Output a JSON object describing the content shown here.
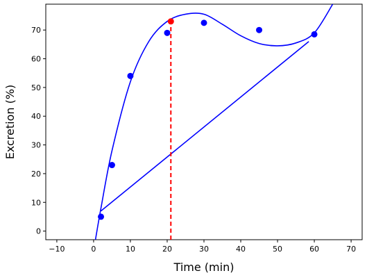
{
  "chart_data": {
    "type": "scatter",
    "xlabel": "Time (min)",
    "ylabel": "Excretion (%)",
    "xlim": [
      -13,
      73
    ],
    "ylim": [
      -3,
      79
    ],
    "xticks": [
      -10,
      0,
      10,
      20,
      30,
      40,
      50,
      60,
      70
    ],
    "yticks": [
      0,
      10,
      20,
      30,
      40,
      50,
      60,
      70
    ],
    "grid": false,
    "points": {
      "x": [
        2,
        5,
        10,
        20,
        30,
        45,
        60
      ],
      "y": [
        5,
        23,
        54,
        69,
        72.5,
        70,
        68.5
      ],
      "color": "#0000ff"
    },
    "highlight_point": {
      "x": 21,
      "y": 73,
      "color": "#ff0000"
    },
    "fitted_curve": {
      "color": "#0000ff",
      "x": [
        0.5,
        2,
        5,
        10,
        15,
        20,
        25,
        30,
        35,
        40,
        45,
        50,
        55,
        60,
        65
      ],
      "y": [
        -3,
        8,
        28,
        52,
        66,
        73,
        75.5,
        75.5,
        72,
        68,
        65.3,
        64.5,
        65.5,
        69,
        79
      ]
    },
    "tangent_line": {
      "x": [
        2,
        58.5
      ],
      "y": [
        7,
        66
      ],
      "color": "#0000ff"
    },
    "vertical_marker": {
      "x": 21,
      "y_from": -3,
      "y_to": 73,
      "color": "#ff0000",
      "style": "dashed"
    }
  }
}
